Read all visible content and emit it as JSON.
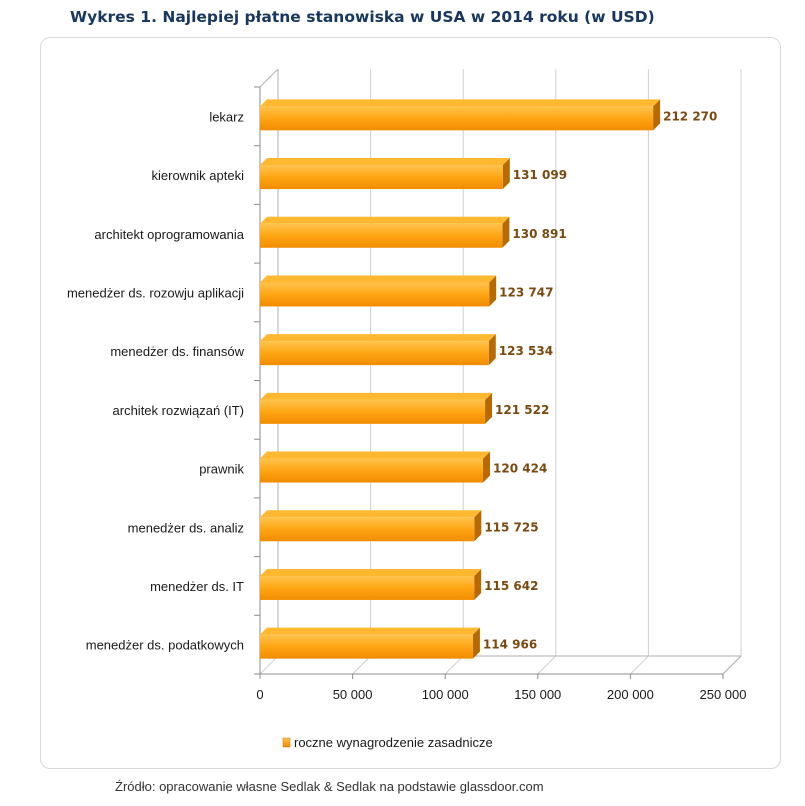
{
  "title": "Wykres 1. Najlepiej płatne stanowiska w USA w 2014 roku (w USD)",
  "source": "Źródło: opracowanie własne Sedlak & Sedlak na podstawie glassdoor.com",
  "colors": {
    "bar_front": "#ffa514",
    "bar_light": "#ffc34d",
    "bar_top": "#ffb830",
    "bar_side": "#b86a00",
    "value_label": "#7a4a10",
    "title": "#17375e",
    "grid": "#d0d0d0"
  },
  "chart_data": {
    "type": "bar",
    "orientation": "horizontal",
    "three_d": true,
    "categories": [
      "lekarz",
      "kierownik apteki",
      "architekt oprogramowania",
      "menedżer ds. rozowju aplikacji",
      "menedżer ds. finansów",
      "architek rozwiązań  (IT)",
      "prawnik",
      "menedżer ds. analiz",
      "menedżer ds. IT",
      "menedżer ds. podatkowych"
    ],
    "value_labels": [
      "212 270",
      "131 099",
      "130 891",
      "123 747",
      "123 534",
      "121 522",
      "120 424",
      "115 725",
      "115 642",
      "114 966"
    ],
    "series": [
      {
        "name": "roczne wynagrodzenie zasadnicze",
        "values": [
          212270,
          131099,
          130891,
          123747,
          123534,
          121522,
          120424,
          115725,
          115642,
          114966
        ]
      }
    ],
    "xlim": [
      0,
      250000
    ],
    "x_ticks": [
      0,
      50000,
      100000,
      150000,
      200000,
      250000
    ],
    "x_tick_labels": [
      "0",
      "50 000",
      "100 000",
      "150 000",
      "200 000",
      "250 000"
    ],
    "grid": true,
    "legend_position": "bottom-left"
  }
}
